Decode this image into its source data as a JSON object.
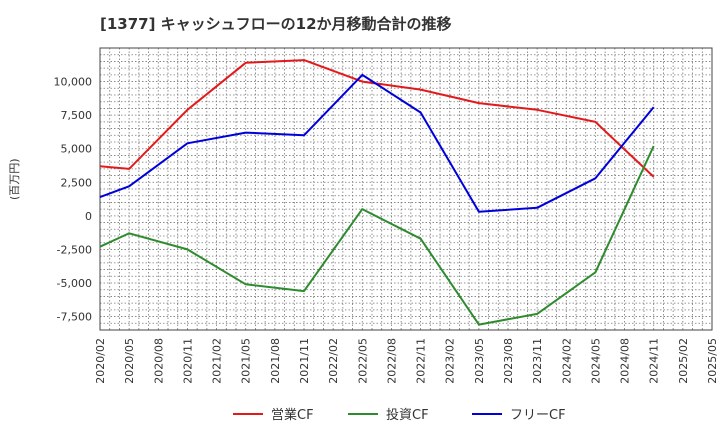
{
  "header": {
    "title": "[1377]  キャッシュフローの12か月移動合計の推移"
  },
  "chart_data": {
    "type": "line",
    "title": "[1377]  キャッシュフローの12か月移動合計の推移",
    "ylabel": "(百万円)",
    "xlabel": "",
    "ylim": [
      -8500,
      12500
    ],
    "y_ticks": [
      10000,
      7500,
      5000,
      2500,
      0,
      -2500,
      -5000,
      -7500
    ],
    "y_tick_labels": [
      "10,000",
      "7,500",
      "5,000",
      "2,500",
      "0",
      "-2,500",
      "-5,000",
      "-7,500"
    ],
    "categories": [
      "2020/02",
      "2020/05",
      "2020/08",
      "2020/11",
      "2021/02",
      "2021/05",
      "2021/08",
      "2021/11",
      "2022/02",
      "2022/05",
      "2022/08",
      "2022/11",
      "2023/02",
      "2023/05",
      "2023/08",
      "2023/11",
      "2024/02",
      "2024/05",
      "2024/08",
      "2024/11",
      "2025/02",
      "2025/05"
    ],
    "grid": true,
    "legend_position": "bottom",
    "series": [
      {
        "name": "営業CF",
        "color": "#e31a1c",
        "points": [
          [
            0,
            3700
          ],
          [
            1,
            3500
          ],
          [
            3,
            7900
          ],
          [
            5,
            11400
          ],
          [
            7,
            11600
          ],
          [
            9,
            10000
          ],
          [
            11,
            9400
          ],
          [
            13,
            8400
          ],
          [
            15,
            7900
          ],
          [
            17,
            7000
          ],
          [
            19,
            2900
          ]
        ]
      },
      {
        "name": "投資CF",
        "color": "#2e8b2e",
        "points": [
          [
            0,
            -2300
          ],
          [
            1,
            -1300
          ],
          [
            3,
            -2500
          ],
          [
            5,
            -5100
          ],
          [
            7,
            -5600
          ],
          [
            9,
            500
          ],
          [
            11,
            -1700
          ],
          [
            13,
            -8100
          ],
          [
            15,
            -7300
          ],
          [
            17,
            -4200
          ],
          [
            19,
            5200
          ]
        ]
      },
      {
        "name": "フリーCF",
        "color": "#0000dd",
        "points": [
          [
            0,
            1400
          ],
          [
            1,
            2200
          ],
          [
            3,
            5400
          ],
          [
            5,
            6200
          ],
          [
            7,
            6000
          ],
          [
            9,
            10500
          ],
          [
            11,
            7700
          ],
          [
            13,
            300
          ],
          [
            15,
            600
          ],
          [
            17,
            2800
          ],
          [
            19,
            8100
          ]
        ]
      }
    ]
  }
}
